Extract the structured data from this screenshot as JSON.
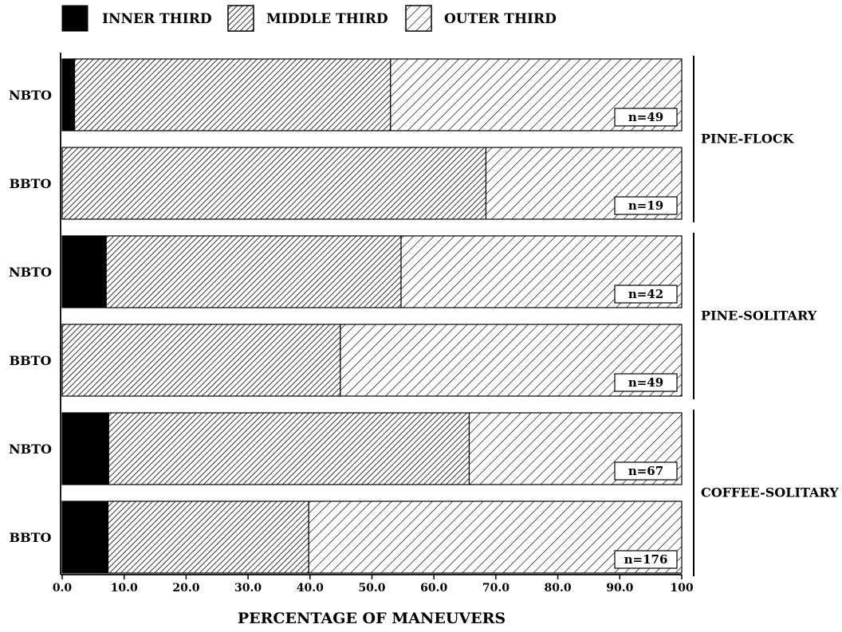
{
  "chart_data": {
    "type": "bar",
    "orientation": "horizontal",
    "stacked": true,
    "xlabel": "PERCENTAGE OF MANEUVERS",
    "ylabel": "",
    "xlim": [
      0,
      100
    ],
    "x_ticks": [
      "0.0",
      "10.0",
      "20.0",
      "30.0",
      "40.0",
      "50.0",
      "60.0",
      "70.0",
      "80.0",
      "90.0",
      "100"
    ],
    "grid": false,
    "legend_position": "top",
    "legend": [
      {
        "name": "INNER THIRD",
        "fill": "solid",
        "color": "#000000"
      },
      {
        "name": "MIDDLE THIRD",
        "fill": "dense-hatch",
        "color": "#000000"
      },
      {
        "name": "OUTER THIRD",
        "fill": "sparse-hatch",
        "color": "#000000"
      }
    ],
    "categories": [
      "NBTO",
      "BBTO",
      "NBTO",
      "BBTO",
      "NBTO",
      "BBTO"
    ],
    "sample_sizes": [
      "n=49",
      "n=19",
      "n=42",
      "n=49",
      "n=67",
      "n=176"
    ],
    "groups": [
      {
        "name": "PINE-FLOCK",
        "rows": [
          0,
          1
        ]
      },
      {
        "name": "PINE-SOLITARY",
        "rows": [
          2,
          3
        ]
      },
      {
        "name": "COFFEE-SOLITARY",
        "rows": [
          4,
          5
        ]
      }
    ],
    "series": [
      {
        "name": "INNER THIRD",
        "values": [
          2.0,
          0.0,
          7.1,
          0.0,
          7.5,
          7.4
        ]
      },
      {
        "name": "MIDDLE THIRD",
        "values": [
          51.0,
          68.4,
          47.6,
          44.9,
          58.2,
          32.4
        ]
      },
      {
        "name": "OUTER THIRD",
        "values": [
          47.0,
          31.6,
          45.3,
          55.1,
          34.3,
          60.2
        ]
      }
    ]
  }
}
